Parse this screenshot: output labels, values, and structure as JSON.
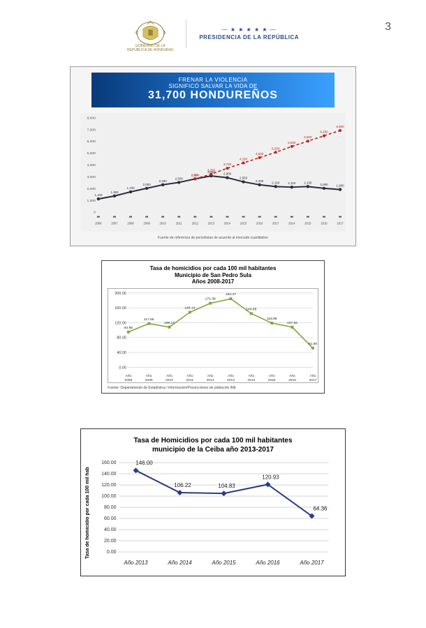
{
  "page_number": "3",
  "header": {
    "logo_caption_line1": "GOBIERNO DE LA",
    "logo_caption_line2": "REPÚBLICA DE HONDURAS",
    "presidency_text": "PRESIDENCIA DE LA REPÚBLICA",
    "stars": "— ★ ★ ★ ★ ★ —"
  },
  "chart1": {
    "type": "line",
    "banner_line1": "FRENAR LA VIOLENCIA",
    "banner_line2": "SIGNIFICÓ SALVAR LA VIDA DE",
    "banner_line3": "31,700 HONDUREÑOS",
    "source": "Fuente de referencia de periodistas de acuerdo al mercado cuantitativo",
    "ytick_labels": [
      "0",
      "1,000",
      "2,000",
      "3,000",
      "4,000",
      "5,000",
      "6,000",
      "7,000",
      "8,000"
    ],
    "xlabels": [
      "2006",
      "2007",
      "2008",
      "2009",
      "2010",
      "2011",
      "2012",
      "2013",
      "2014",
      "2015",
      "2016",
      "2017",
      "2014",
      "2015",
      "2016",
      "2017"
    ],
    "series_dark": {
      "color": "#2b2b38",
      "values": [
        1100,
        1350,
        1700,
        2000,
        2300,
        2500,
        2800,
        3050,
        2900,
        2550,
        2300,
        2150,
        2100,
        2150,
        2000,
        1900
      ]
    },
    "series_red": {
      "color": "#c02020",
      "values_start_index": 6,
      "values": [
        2800,
        3200,
        3700,
        4150,
        4600,
        5050,
        5550,
        6000,
        6450,
        6900
      ]
    },
    "background_color": "#f0f0f0",
    "ylim": [
      0,
      8000
    ]
  },
  "chart2": {
    "type": "line",
    "title_line1": "Tasa de homicidios por cada 100 mil habitantes",
    "title_line2": "Municipio de San Pedro Sula",
    "title_line3": "Años 2008-2017",
    "source": "Fuente: Departamento de Estadística / Información/Proyecciones de población INE",
    "xlabels": [
      "Año 2008",
      "Año 2009",
      "Año 2010",
      "Año 2011",
      "Año 2012",
      "Año 2013",
      "Año 2014",
      "Año 2015",
      "Año 2016",
      "Año 2017"
    ],
    "ytick_labels": [
      "0.00",
      "40.00",
      "80.00",
      "120.00",
      "160.00",
      "200.00"
    ],
    "color": "#7aa83a",
    "values": [
      94.95,
      117.66,
      108.17,
      148.14,
      172.38,
      184.47,
      144.66,
      118.99,
      107.92,
      51.66
    ],
    "ylim": [
      0,
      200
    ],
    "grid_color": "#cccccc"
  },
  "chart3": {
    "type": "line",
    "title_line1": "Tasa de Homicidios por cada 100 mil habitantes",
    "title_line2": "municipio de la Ceiba año 2013-2017",
    "ylabel": "Tasa de homicidio por cada 100 mil hab",
    "xlabels": [
      "Año 2013",
      "Año 2014",
      "Año 2015",
      "Año 2016",
      "Año 2017"
    ],
    "yticks": [
      "0.00",
      "20.00",
      "40.00",
      "60.00",
      "80.00",
      "100.00",
      "120.00",
      "140.00",
      "160.00"
    ],
    "color": "#2a3a8a",
    "values": [
      146.0,
      106.22,
      104.83,
      120.93,
      64.36
    ],
    "value_labels": [
      "146.00",
      "106.22",
      "104.83",
      "120.93",
      "64.36"
    ],
    "ylim": [
      0,
      160
    ],
    "marker": "diamond",
    "grid_color": "#c8c8c8",
    "line_width": 2
  }
}
